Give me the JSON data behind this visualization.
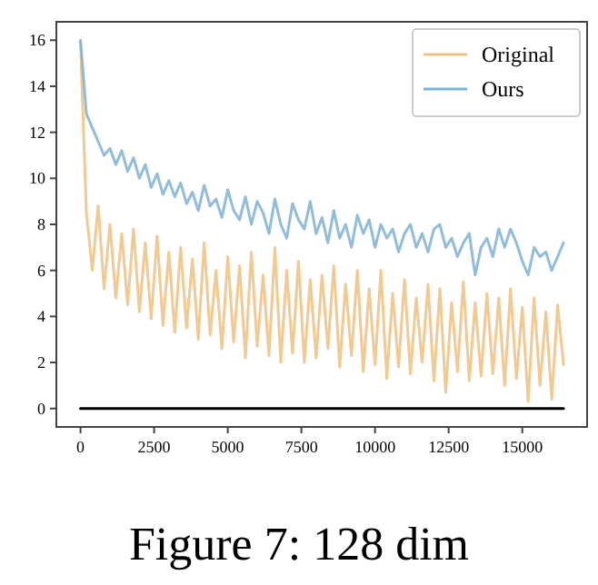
{
  "chart_data": {
    "type": "line",
    "annotations": [
      "Figure 7: 128 dim"
    ],
    "x": [
      0,
      200,
      400,
      600,
      800,
      1000,
      1200,
      1400,
      1600,
      1800,
      2000,
      2200,
      2400,
      2600,
      2800,
      3000,
      3200,
      3400,
      3600,
      3800,
      4000,
      4200,
      4400,
      4600,
      4800,
      5000,
      5200,
      5400,
      5600,
      5800,
      6000,
      6200,
      6400,
      6600,
      6800,
      7000,
      7200,
      7400,
      7600,
      7800,
      8000,
      8200,
      8400,
      8600,
      8800,
      9000,
      9200,
      9400,
      9600,
      9800,
      10000,
      10200,
      10400,
      10600,
      10800,
      11000,
      11200,
      11400,
      11600,
      11800,
      12000,
      12200,
      12400,
      12600,
      12800,
      13000,
      13200,
      13400,
      13600,
      13800,
      14000,
      14200,
      14400,
      14600,
      14800,
      15000,
      15200,
      15400,
      15600,
      15800,
      16000,
      16200,
      16400
    ],
    "series": [
      {
        "name": "Original",
        "color": "#efbf80",
        "values": [
          15.9,
          8.5,
          6.0,
          8.8,
          5.2,
          8.0,
          4.8,
          7.6,
          4.5,
          7.8,
          4.2,
          7.2,
          3.9,
          7.5,
          3.6,
          6.8,
          3.3,
          7.0,
          3.5,
          6.5,
          3.0,
          7.2,
          3.2,
          6.0,
          2.6,
          6.6,
          2.9,
          6.2,
          2.2,
          6.8,
          2.7,
          5.8,
          2.3,
          7.0,
          2.0,
          6.0,
          2.4,
          6.4,
          2.0,
          5.6,
          2.2,
          5.8,
          2.6,
          6.2,
          1.8,
          5.4,
          2.3,
          6.0,
          1.6,
          5.2,
          1.9,
          6.0,
          1.3,
          5.0,
          1.8,
          5.6,
          1.5,
          4.8,
          2.0,
          5.4,
          1.2,
          5.2,
          0.7,
          4.6,
          1.6,
          5.5,
          1.2,
          4.6,
          1.4,
          5.0,
          1.5,
          4.8,
          1.0,
          5.2,
          1.3,
          4.4,
          0.3,
          4.8,
          1.0,
          4.2,
          0.4,
          4.5,
          1.9
        ]
      },
      {
        "name": "Ours",
        "color": "#7fb1d3",
        "values": [
          16.0,
          12.8,
          12.2,
          11.6,
          11.0,
          11.3,
          10.6,
          11.2,
          10.3,
          10.9,
          10.0,
          10.6,
          9.6,
          10.2,
          9.3,
          9.9,
          9.2,
          9.8,
          8.9,
          9.4,
          8.6,
          9.7,
          8.8,
          9.1,
          8.3,
          9.5,
          8.6,
          8.2,
          9.2,
          8.0,
          9.0,
          8.5,
          7.6,
          9.1,
          8.0,
          7.4,
          8.9,
          8.2,
          7.8,
          9.0,
          7.6,
          8.3,
          7.2,
          8.6,
          7.4,
          8.0,
          7.0,
          8.4,
          7.6,
          8.2,
          7.0,
          8.0,
          7.4,
          7.8,
          6.8,
          7.6,
          8.0,
          7.0,
          7.6,
          6.8,
          7.8,
          8.0,
          7.0,
          7.4,
          6.6,
          7.2,
          7.6,
          5.8,
          7.0,
          7.4,
          6.6,
          7.8,
          7.0,
          7.8,
          7.2,
          6.4,
          5.8,
          7.0,
          6.6,
          6.8,
          6.0,
          6.6,
          7.2
        ]
      },
      {
        "color": "#000000",
        "x": [
          0,
          16400
        ],
        "values": [
          0,
          0
        ]
      }
    ],
    "xlim": [
      -820,
      17200
    ],
    "ylim": [
      -0.8,
      16.8
    ],
    "xticks": [
      0,
      2500,
      5000,
      7500,
      10000,
      12500,
      15000
    ],
    "yticks": [
      0,
      2,
      4,
      6,
      8,
      10,
      12,
      14,
      16
    ],
    "grid": false,
    "legend": "top right"
  }
}
